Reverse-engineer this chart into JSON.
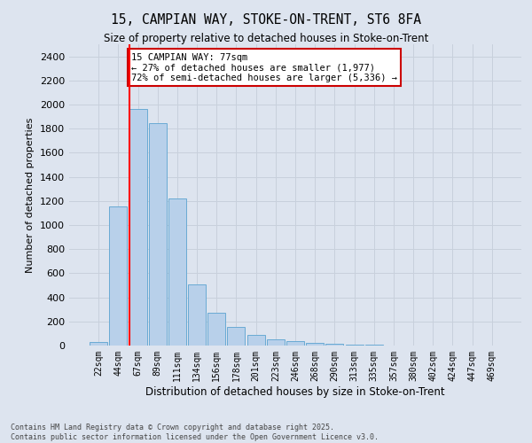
{
  "title1": "15, CAMPIAN WAY, STOKE-ON-TRENT, ST6 8FA",
  "title2": "Size of property relative to detached houses in Stoke-on-Trent",
  "xlabel": "Distribution of detached houses by size in Stoke-on-Trent",
  "ylabel": "Number of detached properties",
  "categories": [
    "22sqm",
    "44sqm",
    "67sqm",
    "89sqm",
    "111sqm",
    "134sqm",
    "156sqm",
    "178sqm",
    "201sqm",
    "223sqm",
    "246sqm",
    "268sqm",
    "290sqm",
    "313sqm",
    "335sqm",
    "357sqm",
    "380sqm",
    "402sqm",
    "424sqm",
    "447sqm",
    "469sqm"
  ],
  "values": [
    30,
    1155,
    1960,
    1845,
    1220,
    510,
    270,
    155,
    90,
    50,
    40,
    25,
    15,
    10,
    5,
    3,
    2,
    1,
    1,
    1,
    0
  ],
  "bar_color": "#b8d0ea",
  "bar_edge_color": "#6aaad4",
  "grid_color": "#c8d0dc",
  "bg_color": "#dde4ef",
  "annotation_text": "15 CAMPIAN WAY: 77sqm\n← 27% of detached houses are smaller (1,977)\n72% of semi-detached houses are larger (5,336) →",
  "annotation_box_color": "#ffffff",
  "annotation_border_color": "#cc0000",
  "ylim": [
    0,
    2500
  ],
  "yticks": [
    0,
    200,
    400,
    600,
    800,
    1000,
    1200,
    1400,
    1600,
    1800,
    2000,
    2200,
    2400
  ],
  "footer_line1": "Contains HM Land Registry data © Crown copyright and database right 2025.",
  "footer_line2": "Contains public sector information licensed under the Open Government Licence v3.0."
}
